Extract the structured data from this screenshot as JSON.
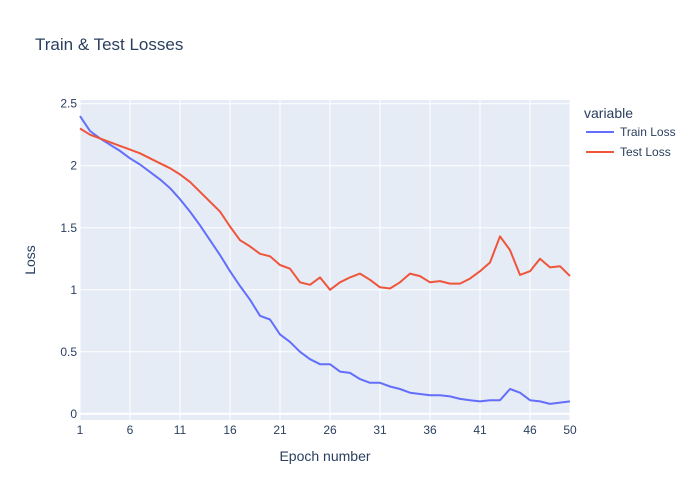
{
  "chart_data": {
    "type": "line",
    "title": "Train & Test Losses",
    "xlabel": "Epoch number",
    "ylabel": "Loss",
    "xlim": [
      1,
      50
    ],
    "ylim": [
      -0.05,
      2.53
    ],
    "x_ticks": [
      1,
      6,
      11,
      16,
      21,
      26,
      31,
      36,
      41,
      46,
      50
    ],
    "y_ticks": [
      0,
      0.5,
      1,
      1.5,
      2,
      2.5
    ],
    "y_tick_labels": [
      "0",
      "0.5",
      "1",
      "1.5",
      "2",
      "2.5"
    ],
    "grid": true,
    "legend_title": "variable",
    "legend_position": "right",
    "x": [
      1,
      2,
      3,
      4,
      5,
      6,
      7,
      8,
      9,
      10,
      11,
      12,
      13,
      14,
      15,
      16,
      17,
      18,
      19,
      20,
      21,
      22,
      23,
      24,
      25,
      26,
      27,
      28,
      29,
      30,
      31,
      32,
      33,
      34,
      35,
      36,
      37,
      38,
      39,
      40,
      41,
      42,
      43,
      44,
      45,
      46,
      47,
      48,
      49,
      50
    ],
    "series": [
      {
        "name": "Train Loss",
        "color": "#636efa",
        "values": [
          2.4,
          2.28,
          2.22,
          2.17,
          2.12,
          2.06,
          2.01,
          1.95,
          1.89,
          1.82,
          1.73,
          1.63,
          1.52,
          1.4,
          1.28,
          1.15,
          1.03,
          0.92,
          0.79,
          0.76,
          0.64,
          0.58,
          0.5,
          0.44,
          0.4,
          0.4,
          0.34,
          0.33,
          0.28,
          0.25,
          0.25,
          0.22,
          0.2,
          0.17,
          0.16,
          0.15,
          0.15,
          0.14,
          0.12,
          0.11,
          0.1,
          0.11,
          0.11,
          0.2,
          0.17,
          0.11,
          0.1,
          0.08,
          0.09,
          0.1
        ]
      },
      {
        "name": "Test Loss",
        "color": "#ef553b",
        "values": [
          2.3,
          2.25,
          2.22,
          2.19,
          2.16,
          2.13,
          2.1,
          2.06,
          2.02,
          1.98,
          1.93,
          1.87,
          1.79,
          1.71,
          1.63,
          1.51,
          1.4,
          1.35,
          1.29,
          1.27,
          1.2,
          1.17,
          1.06,
          1.04,
          1.1,
          1.0,
          1.06,
          1.1,
          1.13,
          1.08,
          1.02,
          1.01,
          1.06,
          1.13,
          1.11,
          1.06,
          1.07,
          1.05,
          1.05,
          1.09,
          1.15,
          1.22,
          1.43,
          1.32,
          1.12,
          1.15,
          1.25,
          1.18,
          1.19,
          1.11
        ]
      }
    ]
  }
}
